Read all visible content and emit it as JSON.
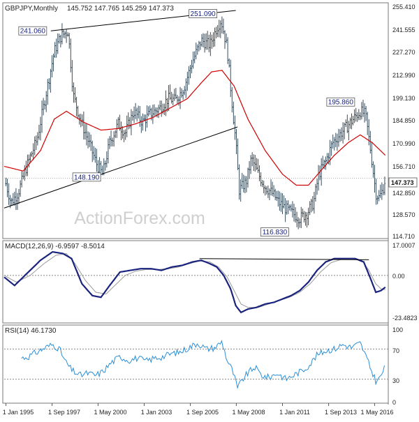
{
  "header": {
    "symbol": "GBPJPY,Monthly",
    "ohlc": "145.752 147.765 145.259 147.373"
  },
  "watermark": "ActionForex.com",
  "colors": {
    "candles": "#3a4e5c",
    "ma": "#d00000",
    "macd": "#1a237e",
    "macd_signal": "#9a9a9a",
    "rsi": "#2a8fd6",
    "trendline": "#000000",
    "callout_text": "#1a237e",
    "grid": "#c0c0c0",
    "axis_text": "#222222"
  },
  "chart_data": [
    {
      "type": "candlestick",
      "panel": "price",
      "ylim": [
        110,
        258
      ],
      "yticks": [
        "255.410",
        "241.555",
        "227.270",
        "212.990",
        "199.130",
        "184.850",
        "170.990",
        "156.710",
        "142.850",
        "128.570",
        "114.710"
      ],
      "last_price": "147.373",
      "x_ticks": [
        "1 Jan 1995",
        "1 Sep 1997",
        "1 May 2000",
        "1 Jan 2003",
        "1 Sep 2005",
        "1 May 2008",
        "1 Jan 2011",
        "1 Sep 2013",
        "1 May 2016"
      ],
      "x_tick_years": [
        1995.0,
        1997.67,
        2000.33,
        2003.0,
        2005.67,
        2008.33,
        2011.0,
        2013.67,
        2016.33
      ],
      "x_range": [
        1994.9,
        2017.0
      ],
      "close_anchors": [
        [
          1994.9,
          148
        ],
        [
          1995.3,
          132
        ],
        [
          1995.7,
          138
        ],
        [
          1996.2,
          155
        ],
        [
          1996.8,
          172
        ],
        [
          1997.3,
          200
        ],
        [
          1997.8,
          228
        ],
        [
          1998.2,
          238
        ],
        [
          1998.6,
          241
        ],
        [
          1998.9,
          200
        ],
        [
          1999.3,
          185
        ],
        [
          1999.8,
          170
        ],
        [
          2000.3,
          155
        ],
        [
          2000.6,
          150
        ],
        [
          2001.0,
          170
        ],
        [
          2001.5,
          182
        ],
        [
          2001.9,
          176
        ],
        [
          2002.4,
          190
        ],
        [
          2002.9,
          183
        ],
        [
          2003.3,
          188
        ],
        [
          2003.9,
          192
        ],
        [
          2004.4,
          198
        ],
        [
          2004.8,
          197
        ],
        [
          2005.3,
          205
        ],
        [
          2005.8,
          222
        ],
        [
          2006.3,
          235
        ],
        [
          2006.8,
          232
        ],
        [
          2007.2,
          243
        ],
        [
          2007.45,
          248
        ],
        [
          2007.8,
          230
        ],
        [
          2008.0,
          205
        ],
        [
          2008.3,
          170
        ],
        [
          2008.5,
          140
        ],
        [
          2008.9,
          145
        ],
        [
          2009.2,
          160
        ],
        [
          2009.6,
          150
        ],
        [
          2010.0,
          142
        ],
        [
          2010.4,
          138
        ],
        [
          2010.8,
          132
        ],
        [
          2011.2,
          128
        ],
        [
          2011.6,
          125
        ],
        [
          2012.0,
          122
        ],
        [
          2012.4,
          125
        ],
        [
          2012.8,
          132
        ],
        [
          2013.1,
          150
        ],
        [
          2013.5,
          158
        ],
        [
          2013.9,
          170
        ],
        [
          2014.3,
          175
        ],
        [
          2014.7,
          180
        ],
        [
          2015.1,
          185
        ],
        [
          2015.5,
          190
        ],
        [
          2015.8,
          188
        ],
        [
          2016.1,
          165
        ],
        [
          2016.4,
          138
        ],
        [
          2016.6,
          135
        ],
        [
          2016.8,
          140
        ],
        [
          2016.95,
          147.4
        ]
      ],
      "ma_anchors": [
        [
          1994.9,
          155
        ],
        [
          1996.0,
          152
        ],
        [
          1997.0,
          165
        ],
        [
          1997.8,
          185
        ],
        [
          1998.5,
          190
        ],
        [
          1999.5,
          183
        ],
        [
          2000.5,
          178
        ],
        [
          2001.5,
          179
        ],
        [
          2002.5,
          182
        ],
        [
          2003.5,
          186
        ],
        [
          2004.5,
          192
        ],
        [
          2005.5,
          198
        ],
        [
          2006.3,
          208
        ],
        [
          2006.9,
          215
        ],
        [
          2007.5,
          216
        ],
        [
          2008.2,
          206
        ],
        [
          2009.0,
          185
        ],
        [
          2010.0,
          165
        ],
        [
          2011.0,
          150
        ],
        [
          2011.8,
          143
        ],
        [
          2012.5,
          143
        ],
        [
          2013.2,
          152
        ],
        [
          2014.0,
          162
        ],
        [
          2014.8,
          170
        ],
        [
          2015.5,
          175
        ],
        [
          2016.2,
          170
        ],
        [
          2016.95,
          162
        ]
      ],
      "trendlines": [
        {
          "from": [
            1997.6,
            241.06
          ],
          "to": [
            2008.3,
            254.0
          ]
        },
        {
          "from": [
            1994.9,
            128.5
          ],
          "to": [
            2008.4,
            180.0
          ]
        }
      ],
      "callouts": [
        {
          "text": "241.060",
          "x": 1997.6,
          "y": 241.06
        },
        {
          "text": "251.090",
          "x": 2007.45,
          "y": 251.09
        },
        {
          "text": "148.190",
          "x": 2000.4,
          "y": 148.19
        },
        {
          "text": "116.830",
          "x": 2011.2,
          "y": 116.83
        },
        {
          "text": "195.860",
          "x": 2015.5,
          "y": 195.86
        }
      ]
    },
    {
      "type": "line",
      "panel": "macd",
      "label": "MACD(12,26,9) -6.9597 -8.5014",
      "ylim": [
        -27,
        19
      ],
      "yticks": [
        "17.0007",
        "0.00",
        "-23.4823"
      ],
      "zero_line": 0,
      "macd_anchors": [
        [
          1994.9,
          -1
        ],
        [
          1995.5,
          -6
        ],
        [
          1996.3,
          2
        ],
        [
          1997.0,
          9
        ],
        [
          1997.7,
          14
        ],
        [
          1998.3,
          13
        ],
        [
          1998.8,
          10
        ],
        [
          1999.4,
          -5
        ],
        [
          2000.0,
          -12
        ],
        [
          2000.5,
          -13
        ],
        [
          2001.0,
          -6
        ],
        [
          2001.6,
          2
        ],
        [
          2002.2,
          3
        ],
        [
          2002.8,
          4
        ],
        [
          2003.4,
          4
        ],
        [
          2004.0,
          3
        ],
        [
          2004.6,
          5
        ],
        [
          2005.2,
          6
        ],
        [
          2005.8,
          8
        ],
        [
          2006.3,
          9
        ],
        [
          2006.8,
          7
        ],
        [
          2007.2,
          5
        ],
        [
          2007.6,
          0
        ],
        [
          2008.0,
          -8
        ],
        [
          2008.3,
          -18
        ],
        [
          2008.6,
          -22
        ],
        [
          2009.0,
          -20
        ],
        [
          2009.5,
          -19
        ],
        [
          2010.0,
          -17
        ],
        [
          2010.5,
          -16
        ],
        [
          2011.0,
          -14
        ],
        [
          2011.5,
          -12
        ],
        [
          2012.0,
          -9
        ],
        [
          2012.5,
          -4
        ],
        [
          2013.0,
          3
        ],
        [
          2013.5,
          8
        ],
        [
          2014.0,
          10
        ],
        [
          2014.6,
          10
        ],
        [
          2015.2,
          10
        ],
        [
          2015.7,
          8
        ],
        [
          2016.1,
          -2
        ],
        [
          2016.4,
          -10
        ],
        [
          2016.7,
          -9
        ],
        [
          2016.95,
          -7
        ]
      ],
      "signal_anchors": [
        [
          1994.9,
          0
        ],
        [
          1995.6,
          -4
        ],
        [
          1996.4,
          0
        ],
        [
          1997.2,
          7
        ],
        [
          1997.9,
          12
        ],
        [
          1998.5,
          13
        ],
        [
          1999.0,
          7
        ],
        [
          1999.6,
          -3
        ],
        [
          2000.2,
          -10
        ],
        [
          2000.8,
          -11
        ],
        [
          2001.3,
          -6
        ],
        [
          2001.9,
          0
        ],
        [
          2002.5,
          2.5
        ],
        [
          2003.1,
          3.5
        ],
        [
          2003.8,
          3.5
        ],
        [
          2004.4,
          4
        ],
        [
          2005.0,
          5
        ],
        [
          2005.6,
          7
        ],
        [
          2006.2,
          8.5
        ],
        [
          2006.8,
          8
        ],
        [
          2007.3,
          5
        ],
        [
          2007.8,
          -1
        ],
        [
          2008.2,
          -9
        ],
        [
          2008.6,
          -17
        ],
        [
          2009.0,
          -19
        ],
        [
          2009.6,
          -19
        ],
        [
          2010.2,
          -17
        ],
        [
          2010.8,
          -15
        ],
        [
          2011.4,
          -13
        ],
        [
          2012.0,
          -10
        ],
        [
          2012.6,
          -5
        ],
        [
          2013.2,
          2
        ],
        [
          2013.8,
          7.5
        ],
        [
          2014.4,
          9.5
        ],
        [
          2015.0,
          10
        ],
        [
          2015.6,
          9
        ],
        [
          2016.0,
          3
        ],
        [
          2016.4,
          -5
        ],
        [
          2016.7,
          -8
        ],
        [
          2016.95,
          -8.5
        ]
      ],
      "trendline": {
        "from": [
          2006.2,
          10
        ],
        "to": [
          2016.0,
          9.3
        ]
      }
    },
    {
      "type": "line",
      "panel": "rsi",
      "label": "RSI(14) 46.1730",
      "ylim": [
        0,
        100
      ],
      "yticks": [
        "100",
        "70",
        "30",
        "0"
      ],
      "levels": [
        70,
        30
      ],
      "rsi_anchors": [
        [
          1995.9,
          58
        ],
        [
          1996.3,
          60
        ],
        [
          1996.8,
          66
        ],
        [
          1997.3,
          72
        ],
        [
          1997.7,
          76
        ],
        [
          1998.1,
          70
        ],
        [
          1998.4,
          55
        ],
        [
          1998.8,
          42
        ],
        [
          1999.3,
          35
        ],
        [
          1999.7,
          38
        ],
        [
          2000.2,
          35
        ],
        [
          2000.6,
          40
        ],
        [
          2001.1,
          52
        ],
        [
          2001.6,
          60
        ],
        [
          2002.1,
          55
        ],
        [
          2002.6,
          58
        ],
        [
          2003.1,
          54
        ],
        [
          2003.6,
          58
        ],
        [
          2004.1,
          60
        ],
        [
          2004.6,
          64
        ],
        [
          2005.1,
          66
        ],
        [
          2005.6,
          72
        ],
        [
          2006.1,
          78
        ],
        [
          2006.6,
          70
        ],
        [
          2007.1,
          72
        ],
        [
          2007.5,
          80
        ],
        [
          2007.8,
          55
        ],
        [
          2008.1,
          42
        ],
        [
          2008.4,
          18
        ],
        [
          2008.7,
          30
        ],
        [
          2009.0,
          38
        ],
        [
          2009.4,
          46
        ],
        [
          2009.8,
          35
        ],
        [
          2010.2,
          32
        ],
        [
          2010.7,
          38
        ],
        [
          2011.2,
          30
        ],
        [
          2011.7,
          36
        ],
        [
          2012.2,
          42
        ],
        [
          2012.6,
          50
        ],
        [
          2013.0,
          62
        ],
        [
          2013.5,
          68
        ],
        [
          2014.0,
          70
        ],
        [
          2014.5,
          76
        ],
        [
          2015.0,
          72
        ],
        [
          2015.5,
          78
        ],
        [
          2015.8,
          62
        ],
        [
          2016.1,
          44
        ],
        [
          2016.4,
          28
        ],
        [
          2016.6,
          30
        ],
        [
          2016.8,
          40
        ],
        [
          2016.95,
          46.2
        ]
      ]
    }
  ]
}
